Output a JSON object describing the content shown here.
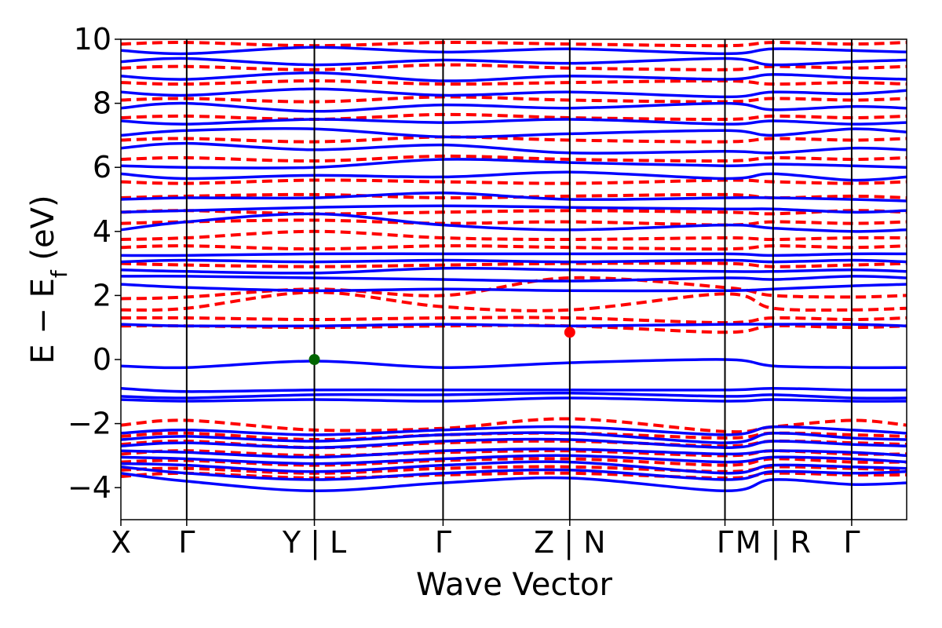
{
  "chart_data": {
    "type": "line",
    "title": "",
    "xlabel": "Wave Vector",
    "ylabel": "E − E",
    "ylabel_subscript": "f",
    "ylabel_unit": " (eV)",
    "ylim": [
      -5,
      10
    ],
    "yticks": [
      10,
      8,
      6,
      4,
      2,
      0,
      -2,
      -4
    ],
    "ytick_labels": [
      "10",
      "8",
      "6",
      "4",
      "2",
      "0",
      "−2",
      "−4"
    ],
    "x_range": [
      0,
      8
    ],
    "kpath_ticks": [
      {
        "x": 0.0,
        "label": "X"
      },
      {
        "x": 0.67,
        "label": "Γ"
      },
      {
        "x": 1.97,
        "label": "Y | L"
      },
      {
        "x": 3.28,
        "label": "Γ"
      },
      {
        "x": 4.57,
        "label": "Z | N"
      },
      {
        "x": 6.15,
        "label": "Γ"
      },
      {
        "x": 6.64,
        "label": "M | R"
      },
      {
        "x": 7.44,
        "label": "Γ"
      }
    ],
    "grid": false,
    "series": [
      {
        "style": "solid",
        "color": "#0000ff",
        "bands": [
          [
            -3.55,
            -3.8,
            -4.1,
            -3.85,
            -3.7,
            -4.1,
            -3.75,
            -3.9,
            -3.85
          ],
          [
            -3.35,
            -3.55,
            -3.75,
            -3.55,
            -3.45,
            -3.75,
            -3.5,
            -3.55,
            -3.5
          ],
          [
            -3.25,
            -3.3,
            -3.5,
            -3.3,
            -3.2,
            -3.55,
            -3.3,
            -3.35,
            -3.4
          ],
          [
            -3.05,
            -3.1,
            -3.25,
            -3.1,
            -3.0,
            -3.2,
            -3.05,
            -3.1,
            -3.2
          ],
          [
            -2.85,
            -2.9,
            -3.05,
            -2.85,
            -2.8,
            -2.95,
            -2.85,
            -2.9,
            -3.0
          ],
          [
            -2.7,
            -2.6,
            -2.75,
            -2.55,
            -2.5,
            -2.75,
            -2.55,
            -2.65,
            -2.7
          ],
          [
            -2.5,
            -2.4,
            -2.55,
            -2.35,
            -2.3,
            -2.6,
            -2.3,
            -2.45,
            -2.5
          ],
          [
            -2.3,
            -2.2,
            -2.35,
            -2.2,
            -2.1,
            -2.35,
            -2.1,
            -2.2,
            -2.3
          ],
          [
            -1.25,
            -1.3,
            -1.25,
            -1.3,
            -1.2,
            -1.3,
            -1.25,
            -1.3,
            -1.3
          ],
          [
            -1.15,
            -1.2,
            -1.1,
            -1.1,
            -1.05,
            -1.15,
            -1.1,
            -1.2,
            -1.2
          ],
          [
            -0.9,
            -1.0,
            -0.95,
            -0.95,
            -0.95,
            -0.95,
            -0.9,
            -0.95,
            -0.95
          ],
          [
            -0.2,
            -0.25,
            -0.05,
            -0.25,
            -0.1,
            0.0,
            -0.2,
            -0.25,
            -0.25
          ],
          [
            1.1,
            1.05,
            1.05,
            1.1,
            1.05,
            1.1,
            1.1,
            1.1,
            1.05
          ],
          [
            2.35,
            2.25,
            2.15,
            2.2,
            2.15,
            2.15,
            2.2,
            2.3,
            2.35
          ],
          [
            2.6,
            2.6,
            2.55,
            2.5,
            2.45,
            2.55,
            2.5,
            2.6,
            2.55
          ],
          [
            2.8,
            2.75,
            2.7,
            2.85,
            2.8,
            2.75,
            2.75,
            2.8,
            2.75
          ],
          [
            3.05,
            3.1,
            3.05,
            3.1,
            3.05,
            3.1,
            3.05,
            3.1,
            3.05
          ],
          [
            3.25,
            3.25,
            3.3,
            3.3,
            3.3,
            3.3,
            3.25,
            3.3,
            3.3
          ],
          [
            4.05,
            4.3,
            4.55,
            4.2,
            4.05,
            4.2,
            4.1,
            4.0,
            4.05
          ],
          [
            4.6,
            4.65,
            4.75,
            4.8,
            4.75,
            4.7,
            4.7,
            4.6,
            4.65
          ],
          [
            5.0,
            5.05,
            5.05,
            5.2,
            5.0,
            5.05,
            5.05,
            5.0,
            4.95
          ],
          [
            5.8,
            5.65,
            5.75,
            5.7,
            5.85,
            5.65,
            5.8,
            5.6,
            5.7
          ],
          [
            6.05,
            6.0,
            6.0,
            6.25,
            6.15,
            6.05,
            6.1,
            6.05,
            6.0
          ],
          [
            6.6,
            6.75,
            6.55,
            6.7,
            6.45,
            6.5,
            6.45,
            6.6,
            6.55
          ],
          [
            7.0,
            7.15,
            7.2,
            6.95,
            7.05,
            7.15,
            7.0,
            7.2,
            7.1
          ],
          [
            7.45,
            7.35,
            7.5,
            7.4,
            7.5,
            7.35,
            7.45,
            7.35,
            7.4
          ],
          [
            7.85,
            8.0,
            7.75,
            7.95,
            7.85,
            8.0,
            7.8,
            7.9,
            7.85
          ],
          [
            8.35,
            8.25,
            8.45,
            8.25,
            8.35,
            8.2,
            8.35,
            8.3,
            8.4
          ],
          [
            8.85,
            8.75,
            8.95,
            8.7,
            8.85,
            8.75,
            8.9,
            8.8,
            8.75
          ],
          [
            9.3,
            9.4,
            9.2,
            9.35,
            9.25,
            9.4,
            9.2,
            9.3,
            9.35
          ],
          [
            9.65,
            9.55,
            9.75,
            9.6,
            9.7,
            9.55,
            9.7,
            9.65,
            9.6
          ]
        ]
      },
      {
        "style": "dashed",
        "color": "#ff0000",
        "bands": [
          [
            -3.65,
            -3.55,
            -3.7,
            -3.6,
            -3.55,
            -3.7,
            -3.55,
            -3.6,
            -3.6
          ],
          [
            -3.45,
            -3.4,
            -3.55,
            -3.4,
            -3.35,
            -3.5,
            -3.35,
            -3.4,
            -3.45
          ],
          [
            -3.2,
            -3.15,
            -3.3,
            -3.15,
            -3.1,
            -3.3,
            -3.1,
            -3.2,
            -3.2
          ],
          [
            -2.95,
            -2.85,
            -3.0,
            -2.9,
            -2.85,
            -3.0,
            -2.85,
            -2.95,
            -2.95
          ],
          [
            -2.65,
            -2.55,
            -2.75,
            -2.6,
            -2.55,
            -2.7,
            -2.55,
            -2.6,
            -2.65
          ],
          [
            -2.4,
            -2.3,
            -2.5,
            -2.35,
            -2.3,
            -2.45,
            -2.3,
            -2.35,
            -2.4
          ],
          [
            -2.05,
            -1.9,
            -2.2,
            -2.15,
            -1.85,
            -2.25,
            -2.1,
            -1.9,
            -2.05
          ],
          [
            1.05,
            1.05,
            1.0,
            1.05,
            1.05,
            0.85,
            1.05,
            1.0,
            1.05
          ],
          [
            1.3,
            1.3,
            1.25,
            1.3,
            1.3,
            1.15,
            1.3,
            1.25,
            1.3
          ],
          [
            1.55,
            1.6,
            2.1,
            1.65,
            1.55,
            2.05,
            1.6,
            1.55,
            1.6
          ],
          [
            1.9,
            1.95,
            2.2,
            2.0,
            2.55,
            2.25,
            2.0,
            1.95,
            2.0
          ],
          [
            3.0,
            2.95,
            2.9,
            2.95,
            3.0,
            3.0,
            2.9,
            2.95,
            3.0
          ],
          [
            3.5,
            3.55,
            3.45,
            3.55,
            3.5,
            3.45,
            3.55,
            3.5,
            3.55
          ],
          [
            3.75,
            3.8,
            4.0,
            3.8,
            3.75,
            3.8,
            3.75,
            3.8,
            3.8
          ],
          [
            4.25,
            4.3,
            4.35,
            4.25,
            4.3,
            4.2,
            4.3,
            4.25,
            4.3
          ],
          [
            4.6,
            4.65,
            4.55,
            4.6,
            4.65,
            4.6,
            4.55,
            4.65,
            4.6
          ],
          [
            5.05,
            5.1,
            5.15,
            5.05,
            5.1,
            5.15,
            5.05,
            5.1,
            5.05
          ],
          [
            5.55,
            5.5,
            5.6,
            5.55,
            5.5,
            5.6,
            5.55,
            5.5,
            5.55
          ],
          [
            6.25,
            6.3,
            6.2,
            6.35,
            6.25,
            6.2,
            6.3,
            6.25,
            6.3
          ],
          [
            6.85,
            6.9,
            6.8,
            6.95,
            6.85,
            6.8,
            6.9,
            6.85,
            6.9
          ],
          [
            7.55,
            7.6,
            7.5,
            7.65,
            7.55,
            7.5,
            7.6,
            7.55,
            7.6
          ],
          [
            8.1,
            8.15,
            8.05,
            8.2,
            8.1,
            8.05,
            8.15,
            8.1,
            8.15
          ],
          [
            8.65,
            8.6,
            8.7,
            8.6,
            8.65,
            8.7,
            8.6,
            8.65,
            8.6
          ],
          [
            9.1,
            9.15,
            9.05,
            9.2,
            9.1,
            9.05,
            9.15,
            9.1,
            9.15
          ],
          [
            9.85,
            9.9,
            9.8,
            9.9,
            9.85,
            9.8,
            9.9,
            9.85,
            9.9
          ]
        ]
      }
    ],
    "markers": [
      {
        "x": 1.97,
        "y": 0.0,
        "color": "#006400"
      },
      {
        "x": 4.57,
        "y": 0.85,
        "color": "#ff0000"
      }
    ]
  }
}
